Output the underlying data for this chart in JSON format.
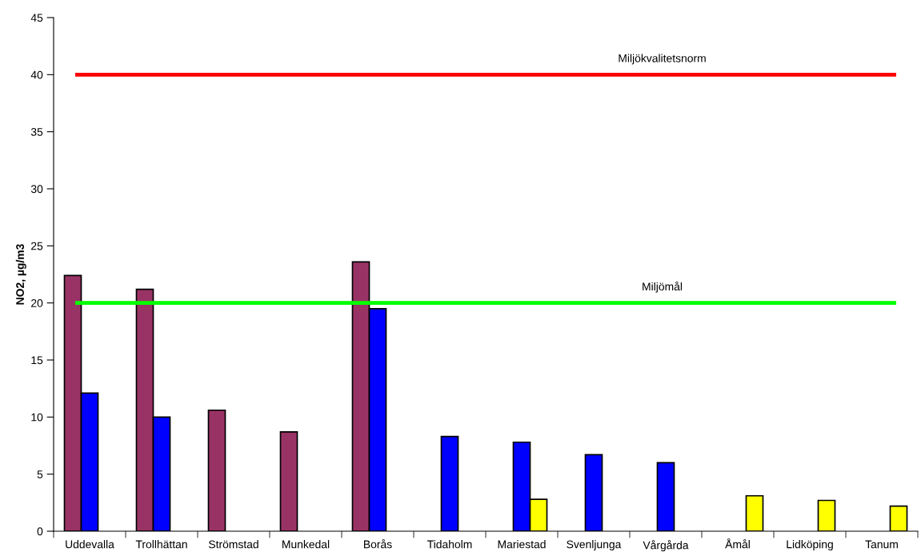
{
  "chart_data": {
    "type": "bar",
    "ylabel": "NO2, µg/m3",
    "categories": [
      "Uddevalla",
      "Trollhättan",
      "Strömstad",
      "Munkedal",
      "Borås",
      "Tidaholm",
      "Mariestad",
      "Svenljunga",
      "Vårgårda",
      "Åmål",
      "Lidköping",
      "Tanum"
    ],
    "series": [
      {
        "color": "#993366",
        "values": [
          22.4,
          21.2,
          10.6,
          8.7,
          23.6,
          null,
          null,
          null,
          null,
          null,
          null,
          null
        ]
      },
      {
        "color": "#0000ff",
        "values": [
          12.1,
          10.0,
          null,
          null,
          19.5,
          8.3,
          7.8,
          6.7,
          6.0,
          null,
          null,
          null
        ]
      },
      {
        "color": "#ffff00",
        "values": [
          null,
          null,
          null,
          null,
          null,
          null,
          2.8,
          null,
          null,
          3.1,
          2.7,
          2.2
        ]
      }
    ],
    "ylim": [
      0,
      45
    ],
    "yticks": [
      0,
      5,
      10,
      15,
      20,
      25,
      30,
      35,
      40,
      45
    ],
    "grid": false,
    "legend": false,
    "ref_lines": [
      {
        "axis": "y",
        "value": 40,
        "label": "Miljökvalitetsnorm",
        "color": "#ff0000"
      },
      {
        "axis": "y",
        "value": 20,
        "label": "Miljömål",
        "color": "#00ff00"
      }
    ]
  }
}
